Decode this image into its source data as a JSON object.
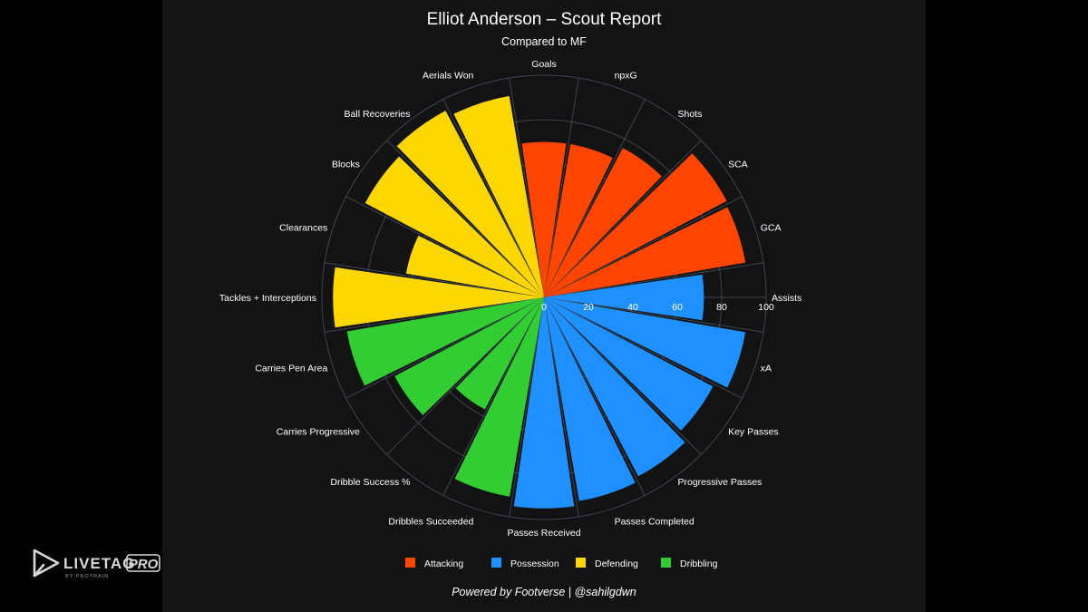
{
  "page": {
    "background_color": "#000000",
    "panel_color": "#131313",
    "credit": "Powered by Footverse | @sahilgdwn"
  },
  "watermark": {
    "brand": "LIVETAG",
    "suffix": "PRO",
    "tagline": "BY PROTRAIN"
  },
  "chart_data": {
    "type": "radial-bar",
    "title": "Elliot Anderson – Scout Report",
    "subtitle": "Compared to MF",
    "radial_axis": {
      "range": [
        0,
        100
      ],
      "ticks": [
        0,
        20,
        40,
        60,
        80,
        100
      ]
    },
    "groups": [
      {
        "name": "Attacking",
        "color": "#FF4500"
      },
      {
        "name": "Possession",
        "color": "#1E90FF"
      },
      {
        "name": "Defending",
        "color": "#FFD700"
      },
      {
        "name": "Dribbling",
        "color": "#32CD32"
      }
    ],
    "metrics": [
      {
        "label": "Goals",
        "value": 70,
        "group": "Attacking"
      },
      {
        "label": "npxG",
        "value": 70,
        "group": "Attacking"
      },
      {
        "label": "Shots",
        "value": 76,
        "group": "Attacking"
      },
      {
        "label": "SCA",
        "value": 93,
        "group": "Attacking"
      },
      {
        "label": "GCA",
        "value": 92,
        "group": "Attacking"
      },
      {
        "label": "Assists",
        "value": 72,
        "group": "Possession"
      },
      {
        "label": "xA",
        "value": 92,
        "group": "Possession"
      },
      {
        "label": "Key Passes",
        "value": 86,
        "group": "Possession"
      },
      {
        "label": "Progressive Passes",
        "value": 91,
        "group": "Possession"
      },
      {
        "label": "Passes Completed",
        "value": 93,
        "group": "Possession"
      },
      {
        "label": "Passes Received",
        "value": 95,
        "group": "Possession"
      },
      {
        "label": "Dribbles Succeeded",
        "value": 91,
        "group": "Dribbling"
      },
      {
        "label": "Dribble Success %",
        "value": 57,
        "group": "Dribbling"
      },
      {
        "label": "Carries Progressive",
        "value": 76,
        "group": "Dribbling"
      },
      {
        "label": "Carries Pen Area",
        "value": 90,
        "group": "Dribbling"
      },
      {
        "label": "Tackles + Interceptions",
        "value": 95,
        "group": "Defending"
      },
      {
        "label": "Clearances",
        "value": 63,
        "group": "Defending"
      },
      {
        "label": "Blocks",
        "value": 91,
        "group": "Defending"
      },
      {
        "label": "Ball Recoveries",
        "value": 95,
        "group": "Defending"
      },
      {
        "label": "Aerials Won",
        "value": 92,
        "group": "Defending"
      }
    ]
  }
}
